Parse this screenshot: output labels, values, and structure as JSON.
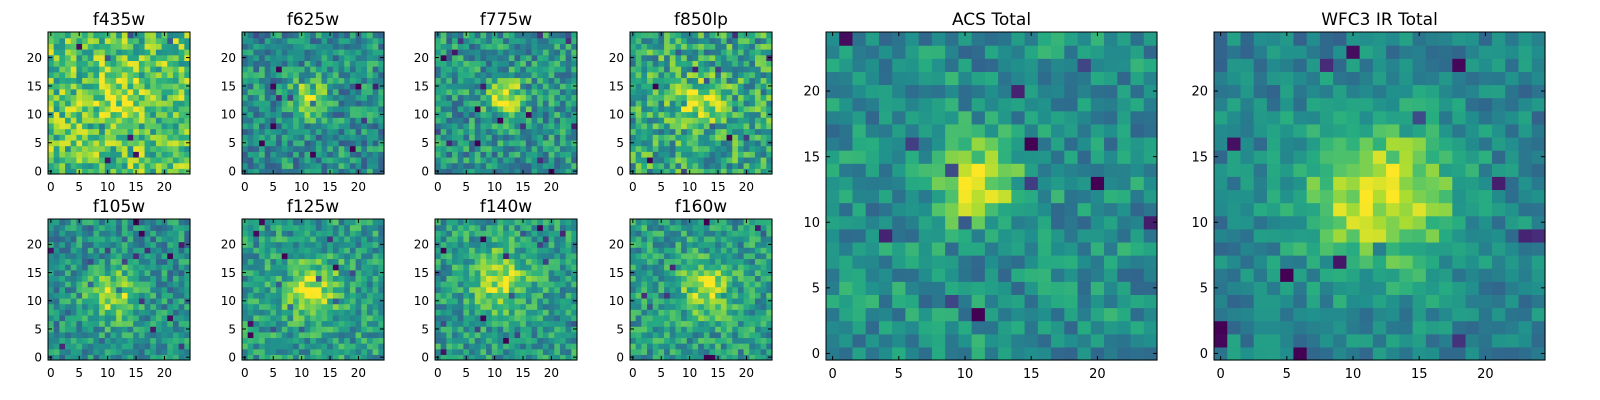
{
  "chart_data": [
    {
      "type": "heatmap",
      "title": "f435w",
      "xlim": [
        -0.5,
        24.5
      ],
      "ylim": [
        -0.5,
        24.5
      ],
      "xticks": [
        0,
        5,
        10,
        15,
        20
      ],
      "yticks": [
        0,
        5,
        10,
        15,
        20
      ],
      "x_tick_labels": [
        "0",
        "5",
        "10",
        "15",
        "20"
      ],
      "y_tick_labels": [
        "0",
        "5",
        "10",
        "15",
        "20"
      ],
      "grid_size": [
        25,
        25
      ],
      "colormap": "viridis",
      "seed": 11,
      "blob": {
        "center": [
          12,
          13
        ],
        "sigma": 3.0,
        "amp": 0.15
      },
      "noise": 0.5,
      "base": 0.72
    },
    {
      "type": "heatmap",
      "title": "f625w",
      "xlim": [
        -0.5,
        24.5
      ],
      "ylim": [
        -0.5,
        24.5
      ],
      "xticks": [
        0,
        5,
        10,
        15,
        20
      ],
      "yticks": [
        0,
        5,
        10,
        15,
        20
      ],
      "x_tick_labels": [
        "0",
        "5",
        "10",
        "15",
        "20"
      ],
      "y_tick_labels": [
        "0",
        "5",
        "10",
        "15",
        "20"
      ],
      "grid_size": [
        25,
        25
      ],
      "colormap": "viridis",
      "seed": 23,
      "blob": {
        "center": [
          11,
          13
        ],
        "sigma": 2.2,
        "amp": 0.45
      },
      "noise": 0.45,
      "base": 0.5
    },
    {
      "type": "heatmap",
      "title": "f775w",
      "xlim": [
        -0.5,
        24.5
      ],
      "ylim": [
        -0.5,
        24.5
      ],
      "xticks": [
        0,
        5,
        10,
        15,
        20
      ],
      "yticks": [
        0,
        5,
        10,
        15,
        20
      ],
      "x_tick_labels": [
        "0",
        "5",
        "10",
        "15",
        "20"
      ],
      "y_tick_labels": [
        "0",
        "5",
        "10",
        "15",
        "20"
      ],
      "grid_size": [
        25,
        25
      ],
      "colormap": "viridis",
      "seed": 37,
      "blob": {
        "center": [
          12,
          13
        ],
        "sigma": 2.3,
        "amp": 0.45
      },
      "noise": 0.45,
      "base": 0.52
    },
    {
      "type": "heatmap",
      "title": "f850lp",
      "xlim": [
        -0.5,
        24.5
      ],
      "ylim": [
        -0.5,
        24.5
      ],
      "xticks": [
        0,
        5,
        10,
        15,
        20
      ],
      "yticks": [
        0,
        5,
        10,
        15,
        20
      ],
      "x_tick_labels": [
        "0",
        "5",
        "10",
        "15",
        "20"
      ],
      "y_tick_labels": [
        "0",
        "5",
        "10",
        "15",
        "20"
      ],
      "grid_size": [
        25,
        25
      ],
      "colormap": "viridis",
      "seed": 41,
      "blob": {
        "center": [
          12,
          12
        ],
        "sigma": 2.8,
        "amp": 0.3
      },
      "noise": 0.5,
      "base": 0.6
    },
    {
      "type": "heatmap",
      "title": "ACS Total",
      "xlim": [
        -0.5,
        24.5
      ],
      "ylim": [
        -0.5,
        24.5
      ],
      "xticks": [
        0,
        5,
        10,
        15,
        20
      ],
      "yticks": [
        0,
        5,
        10,
        15,
        20
      ],
      "x_tick_labels": [
        "0",
        "5",
        "10",
        "15",
        "20"
      ],
      "y_tick_labels": [
        "0",
        "5",
        "10",
        "15",
        "20"
      ],
      "grid_size": [
        25,
        25
      ],
      "colormap": "viridis",
      "seed": 53,
      "blob": {
        "center": [
          11,
          13
        ],
        "sigma": 2.2,
        "amp": 0.45
      },
      "noise": 0.35,
      "base": 0.5
    },
    {
      "type": "heatmap",
      "title": "f105w",
      "xlim": [
        -0.5,
        24.5
      ],
      "ylim": [
        -0.5,
        24.5
      ],
      "xticks": [
        0,
        5,
        10,
        15,
        20
      ],
      "yticks": [
        0,
        5,
        10,
        15,
        20
      ],
      "x_tick_labels": [
        "0",
        "5",
        "10",
        "15",
        "20"
      ],
      "y_tick_labels": [
        "0",
        "5",
        "10",
        "15",
        "20"
      ],
      "grid_size": [
        25,
        25
      ],
      "colormap": "viridis",
      "seed": 61,
      "blob": {
        "center": [
          11,
          11
        ],
        "sigma": 3.2,
        "amp": 0.4
      },
      "noise": 0.4,
      "base": 0.5
    },
    {
      "type": "heatmap",
      "title": "f125w",
      "xlim": [
        -0.5,
        24.5
      ],
      "ylim": [
        -0.5,
        24.5
      ],
      "xticks": [
        0,
        5,
        10,
        15,
        20
      ],
      "yticks": [
        0,
        5,
        10,
        15,
        20
      ],
      "x_tick_labels": [
        "0",
        "5",
        "10",
        "15",
        "20"
      ],
      "y_tick_labels": [
        "0",
        "5",
        "10",
        "15",
        "20"
      ],
      "grid_size": [
        25,
        25
      ],
      "colormap": "viridis",
      "seed": 73,
      "blob": {
        "center": [
          12,
          12
        ],
        "sigma": 3.5,
        "amp": 0.35
      },
      "noise": 0.4,
      "base": 0.55
    },
    {
      "type": "heatmap",
      "title": "f140w",
      "xlim": [
        -0.5,
        24.5
      ],
      "ylim": [
        -0.5,
        24.5
      ],
      "xticks": [
        0,
        5,
        10,
        15,
        20
      ],
      "yticks": [
        0,
        5,
        10,
        15,
        20
      ],
      "x_tick_labels": [
        "0",
        "5",
        "10",
        "15",
        "20"
      ],
      "y_tick_labels": [
        "0",
        "5",
        "10",
        "15",
        "20"
      ],
      "grid_size": [
        25,
        25
      ],
      "colormap": "viridis",
      "seed": 89,
      "blob": {
        "center": [
          11,
          14
        ],
        "sigma": 3.5,
        "amp": 0.35
      },
      "noise": 0.4,
      "base": 0.55
    },
    {
      "type": "heatmap",
      "title": "f160w",
      "xlim": [
        -0.5,
        24.5
      ],
      "ylim": [
        -0.5,
        24.5
      ],
      "xticks": [
        0,
        5,
        10,
        15,
        20
      ],
      "yticks": [
        0,
        5,
        10,
        15,
        20
      ],
      "x_tick_labels": [
        "0",
        "5",
        "10",
        "15",
        "20"
      ],
      "y_tick_labels": [
        "0",
        "5",
        "10",
        "15",
        "20"
      ],
      "grid_size": [
        25,
        25
      ],
      "colormap": "viridis",
      "seed": 97,
      "blob": {
        "center": [
          13,
          12
        ],
        "sigma": 3.2,
        "amp": 0.35
      },
      "noise": 0.4,
      "base": 0.55
    },
    {
      "type": "heatmap",
      "title": "WFC3 IR Total",
      "xlim": [
        -0.5,
        24.5
      ],
      "ylim": [
        -0.5,
        24.5
      ],
      "xticks": [
        0,
        5,
        10,
        15,
        20
      ],
      "yticks": [
        0,
        5,
        10,
        15,
        20
      ],
      "x_tick_labels": [
        "0",
        "5",
        "10",
        "15",
        "20"
      ],
      "y_tick_labels": [
        "0",
        "5",
        "10",
        "15",
        "20"
      ],
      "grid_size": [
        25,
        25
      ],
      "colormap": "viridis",
      "seed": 101,
      "blob": {
        "center": [
          12,
          12
        ],
        "sigma": 4.2,
        "amp": 0.5
      },
      "noise": 0.28,
      "base": 0.45
    }
  ]
}
